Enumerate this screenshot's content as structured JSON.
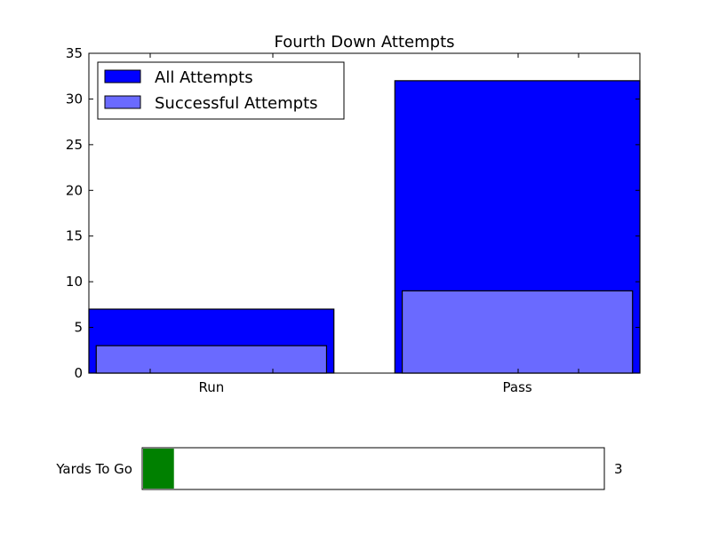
{
  "colors": {
    "all_attempts": "#0000ff",
    "successful_attempts": "#6a6aff",
    "slider_fill": "#008000"
  },
  "chart_data": {
    "type": "bar",
    "title": "Fourth Down Attempts",
    "xlabel": "",
    "ylabel": "",
    "categories": [
      "Run",
      "Pass"
    ],
    "series": [
      {
        "name": "All Attempts",
        "values": [
          7,
          32
        ]
      },
      {
        "name": "Successful Attempts",
        "values": [
          3,
          9
        ]
      }
    ],
    "ylim": [
      0,
      35
    ],
    "yticks": [
      0,
      5,
      10,
      15,
      20,
      25,
      30,
      35
    ],
    "grid": false,
    "legend": "top-left"
  },
  "slider": {
    "label": "Yards To Go",
    "value": 3,
    "value_text": "3",
    "fill_fraction": 0.067
  }
}
